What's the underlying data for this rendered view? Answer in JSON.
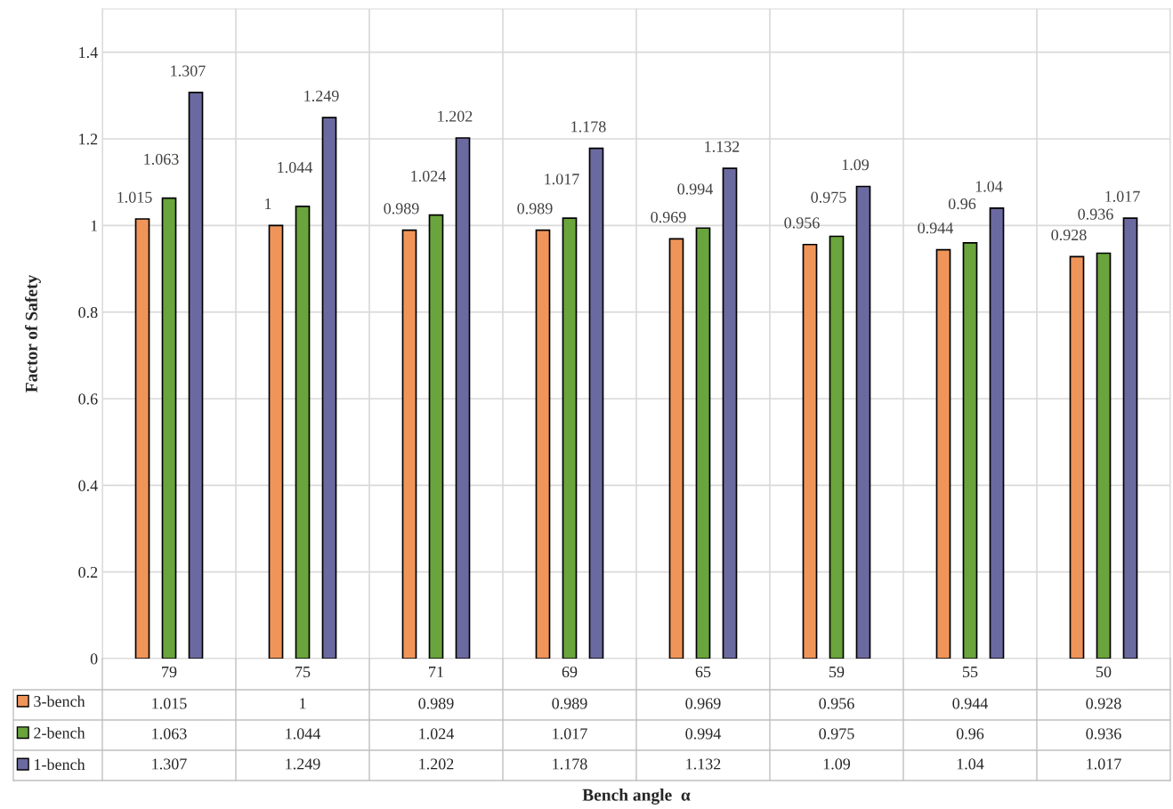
{
  "chart_data": {
    "type": "bar",
    "ylabel": "Factor of Safety",
    "categories": [
      "79",
      "75",
      "71",
      "69",
      "65",
      "59",
      "55",
      "50"
    ],
    "series": [
      {
        "name": "3-bench",
        "color": "#f0955a",
        "values": [
          1.015,
          1,
          0.989,
          0.989,
          0.969,
          0.956,
          0.944,
          0.928
        ],
        "value_labels": [
          "1.015",
          "1",
          "0.989",
          "0.989",
          "0.969",
          "0.956",
          "0.944",
          "0.928"
        ]
      },
      {
        "name": "2-bench",
        "color": "#6aa43c",
        "values": [
          1.063,
          1.044,
          1.024,
          1.017,
          0.994,
          0.975,
          0.96,
          0.936
        ],
        "value_labels": [
          "1.063",
          "1.044",
          "1.024",
          "1.017",
          "0.994",
          "0.975",
          "0.96",
          "0.936"
        ]
      },
      {
        "name": "1-bench",
        "color": "#6b6aa0",
        "values": [
          1.307,
          1.249,
          1.202,
          1.178,
          1.132,
          1.09,
          1.04,
          1.017
        ],
        "value_labels": [
          "1.307",
          "1.249",
          "1.202",
          "1.178",
          "1.132",
          "1.09",
          "1.04",
          "1.017"
        ]
      }
    ],
    "annotations": [
      "1.015",
      "1",
      "0.989",
      "0.989",
      "0.969",
      "0.956",
      "0.944",
      "0.928",
      "1.063",
      "1.044",
      "1.024",
      "1.017",
      "0.994",
      "0.975",
      "0.96",
      "0.936",
      "1.307",
      "1.249",
      "1.202",
      "1.178",
      "1.132",
      "1.09",
      "1.04",
      "1.017",
      "Bench angle  α"
    ],
    "ylim": [
      0,
      1.5
    ],
    "yticks": [
      0,
      0.2,
      0.4,
      0.6,
      0.8,
      1,
      1.2,
      1.4
    ],
    "grid": true,
    "data_labels": true,
    "legend": "bottom"
  }
}
